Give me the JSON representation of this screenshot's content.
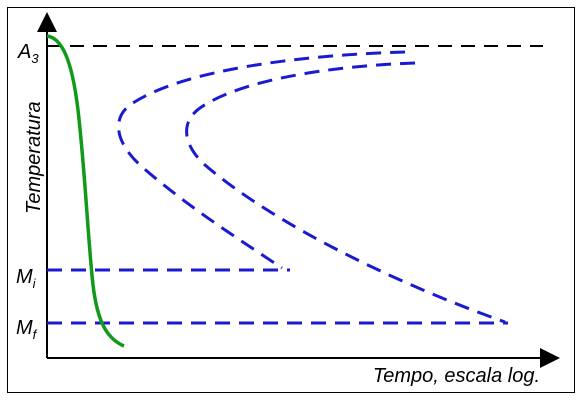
{
  "diagram": {
    "y_axis_label": "Temperatura",
    "x_axis_label": "Tempo, escala log.",
    "levels": {
      "a3": {
        "base": "A",
        "sub": "3"
      },
      "mi": {
        "base": "M",
        "sub": "i"
      },
      "mf": {
        "base": "M",
        "sub": "f"
      }
    },
    "colors": {
      "axis": "#000000",
      "cooling_curve": "#0f9a18",
      "transformation_curves": "#1a1ad0",
      "a3_line": "#000000"
    }
  }
}
